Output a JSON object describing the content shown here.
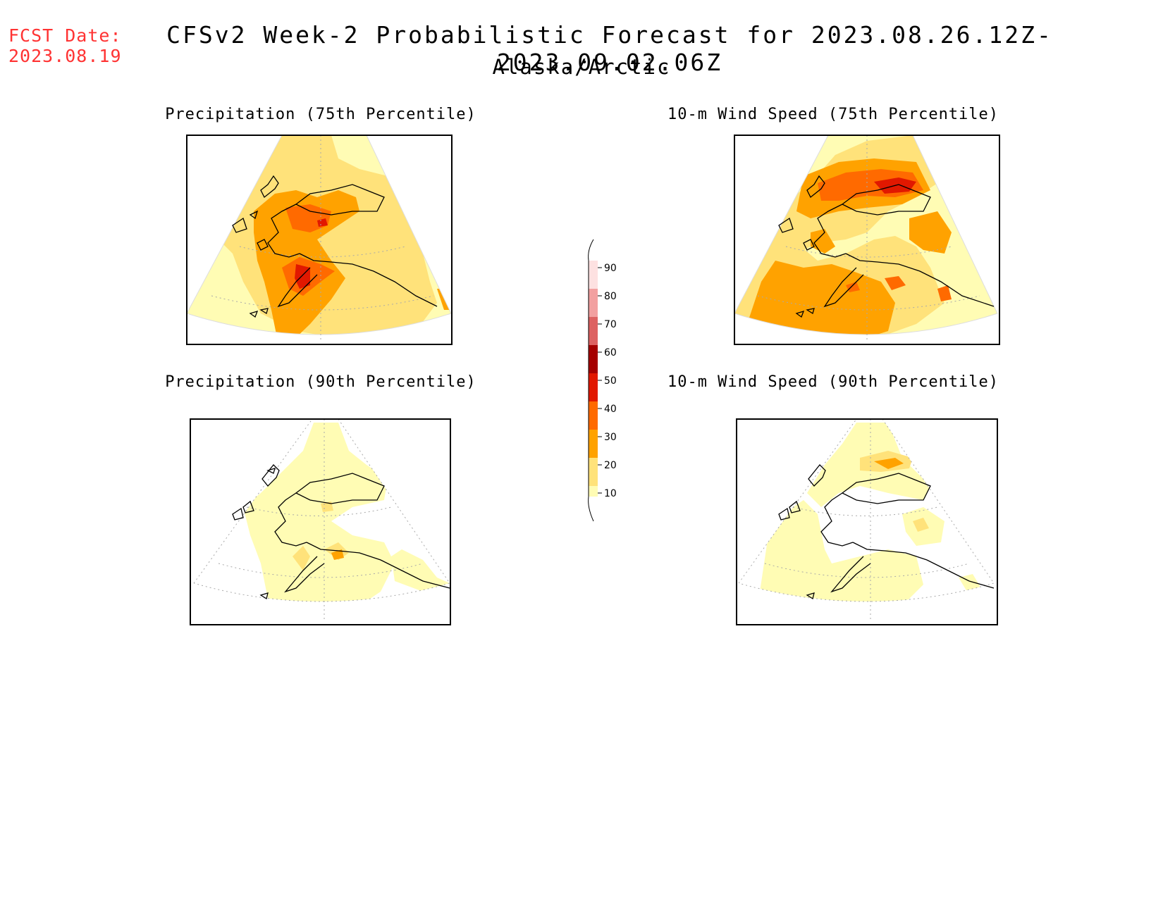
{
  "header": {
    "fcst_label": "FCST Date:",
    "fcst_date": "2023.08.19",
    "title": "CFSv2 Week-2 Probabilistic Forecast for 2023.08.26.12Z-2023.09.02.06Z",
    "region": "Alaska/Arctic"
  },
  "panels": [
    {
      "id": "precip75",
      "title": "Precipitation (75th Percentile)"
    },
    {
      "id": "wind75",
      "title": "10-m Wind Speed (75th Percentile)"
    },
    {
      "id": "precip90",
      "title": "Precipitation (90th Percentile)"
    },
    {
      "id": "wind90",
      "title": "10-m Wind Speed (90th Percentile)"
    }
  ],
  "colorbar": {
    "labels": [
      "90",
      "80",
      "70",
      "60",
      "50",
      "40",
      "30",
      "20",
      "10"
    ],
    "colors": {
      "10-20": "#fffcb4",
      "20-30": "#ffe27a",
      "30-40": "#ffa200",
      "40-50": "#ff6a00",
      "50-60": "#e11800",
      "60-70": "#a50000",
      "70-80": "#dd6262",
      "80-90": "#f2a0a0",
      "90+": "#fde1e1"
    }
  }
}
